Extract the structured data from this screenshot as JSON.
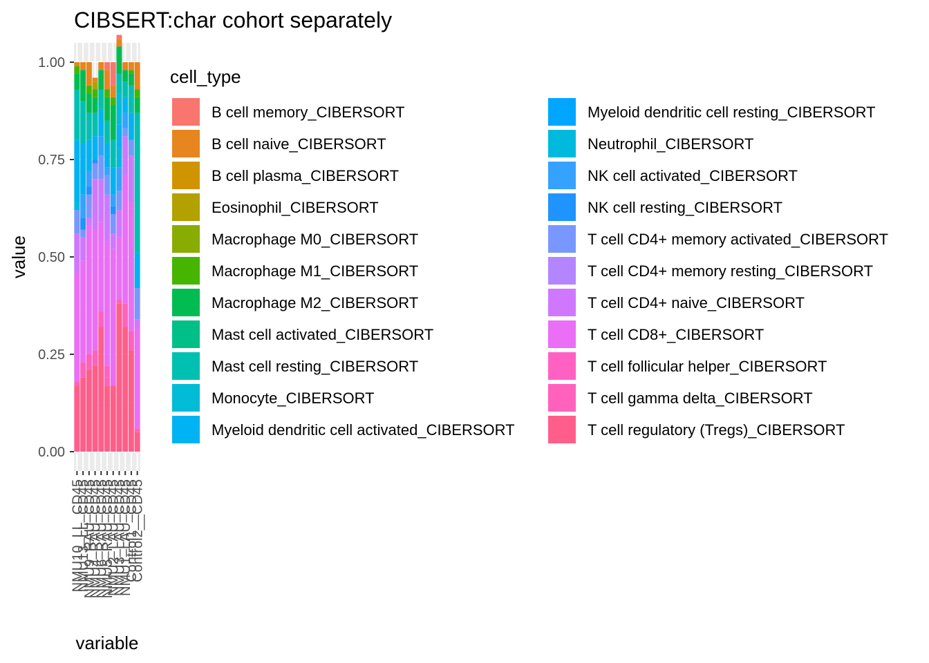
{
  "chart_data": {
    "type": "bar",
    "stacked": true,
    "title": "CIBSERT:char cohort separately",
    "xlabel": "variable",
    "ylabel": "value",
    "ylim": [
      0,
      1
    ],
    "yticks": [
      "0.00",
      "0.25",
      "0.50",
      "0.75",
      "1.00"
    ],
    "grid": true,
    "legend": {
      "title": "cell_type",
      "position": "right"
    },
    "categories": [
      "NMU10_LL_CD45",
      "NMU13_LL_CD45",
      "NMU9_RAU_CD45",
      "NMU4_RAU_CD45",
      "NMU6_RAU_CD45",
      "NMU5_RAU_CD45",
      "NMU2_LAU_CD45",
      "NMU3_LAU_CD45",
      "NMU1_LAU_CD45",
      "Control1__CD45",
      "Control2__CD45"
    ],
    "series": [
      {
        "name": "B cell memory_CIBERSORT",
        "color": "#F8766D",
        "values": [
          0,
          0,
          0,
          0,
          0,
          0.02,
          0.06,
          0.01,
          0,
          0,
          0
        ]
      },
      {
        "name": "B cell naive_CIBERSORT",
        "color": "#E7851E",
        "values": [
          0.01,
          0.02,
          0.06,
          0.01,
          0.02,
          0.05,
          0.03,
          0.02,
          0.02,
          0.02,
          0.07
        ]
      },
      {
        "name": "B cell plasma_CIBERSORT",
        "color": "#D09400",
        "values": [
          0,
          0,
          0,
          0,
          0,
          0,
          0,
          0,
          0,
          0,
          0
        ]
      },
      {
        "name": "Eosinophil_CIBERSORT",
        "color": "#B2A100",
        "values": [
          0,
          0,
          0,
          0.02,
          0,
          0,
          0,
          0,
          0,
          0,
          0
        ]
      },
      {
        "name": "Macrophage M0_CIBERSORT",
        "color": "#89AC00",
        "values": [
          0,
          0,
          0,
          0,
          0,
          0,
          0,
          0,
          0,
          0,
          0
        ]
      },
      {
        "name": "Macrophage M1_CIBERSORT",
        "color": "#45B500",
        "values": [
          0.02,
          0,
          0.02,
          0.02,
          0,
          0.02,
          0.02,
          0,
          0,
          0.01,
          0.02
        ]
      },
      {
        "name": "Macrophage M2_CIBERSORT",
        "color": "#00BC51",
        "values": [
          0.04,
          0.08,
          0.05,
          0.04,
          0.05,
          0.06,
          0.09,
          0.07,
          0.03,
          0.03,
          0.04
        ]
      },
      {
        "name": "Mast cell activated_CIBERSORT",
        "color": "#00C087",
        "values": [
          0,
          0,
          0,
          0,
          0,
          0,
          0,
          0,
          0,
          0,
          0
        ]
      },
      {
        "name": "Mast cell resting_CIBERSORT",
        "color": "#00C0B2",
        "values": [
          0.13,
          0.11,
          0.07,
          0.06,
          0.05,
          0.06,
          0.07,
          0.05,
          0.04,
          0.07,
          0.36
        ]
      },
      {
        "name": "Monocyte_CIBERSORT",
        "color": "#00BCD6",
        "values": [
          0,
          0,
          0,
          0,
          0,
          0,
          0,
          0.08,
          0,
          0,
          0
        ]
      },
      {
        "name": "Myeloid dendritic cell activated_CIBERSORT",
        "color": "#00B3F2",
        "values": [
          0.16,
          0.13,
          0.08,
          0.06,
          0.07,
          0.06,
          0.07,
          0.06,
          0.04,
          0.07,
          0.09
        ]
      },
      {
        "name": "Myeloid dendritic cell resting_CIBERSORT",
        "color": "#00A6FF",
        "values": [
          0,
          0,
          0,
          0,
          0,
          0,
          0,
          0,
          0,
          0,
          0
        ]
      },
      {
        "name": "Neutrophil_CIBERSORT",
        "color": "#00BADE",
        "values": [
          0.02,
          0,
          0,
          0,
          0,
          0,
          0,
          0.05,
          0,
          0,
          0
        ]
      },
      {
        "name": "NK cell activated_CIBERSORT",
        "color": "#35A2FF",
        "values": [
          0,
          0.06,
          0.04,
          0,
          0.05,
          0.02,
          0.03,
          0.06,
          0.04,
          0,
          0
        ]
      },
      {
        "name": "NK cell resting_CIBERSORT",
        "color": "#1F94FF",
        "values": [
          0,
          0.03,
          0.02,
          0.01,
          0,
          0,
          0.02,
          0,
          0,
          0,
          0
        ]
      },
      {
        "name": "T cell CD4+ memory activated_CIBERSORT",
        "color": "#7997FF",
        "values": [
          0.06,
          0.02,
          0.06,
          0.04,
          0.06,
          0.05,
          0.05,
          0.05,
          0.02,
          0.04,
          0.08
        ]
      },
      {
        "name": "T cell CD4+ memory resting_CIBERSORT",
        "color": "#B385FF",
        "values": [
          0,
          0,
          0,
          0,
          0,
          0,
          0,
          0,
          0,
          0,
          0
        ]
      },
      {
        "name": "T cell CD4+ naive_CIBERSORT",
        "color": "#CF78FF",
        "values": [
          0.1,
          0.06,
          0.02,
          0.13,
          0.11,
          0.12,
          0.04,
          0.07,
          0.1,
          0.12,
          0.02
        ]
      },
      {
        "name": "T cell CD8+_CIBERSORT",
        "color": "#EB6EF6",
        "values": [
          0.28,
          0.26,
          0.33,
          0.31,
          0.23,
          0.32,
          0.35,
          0.16,
          0.33,
          0.33,
          0.26
        ]
      },
      {
        "name": "T cell follicular helper_CIBERSORT",
        "color": "#FF61C3",
        "values": [
          0,
          0,
          0,
          0,
          0,
          0.03,
          0,
          0,
          0,
          0,
          0
        ]
      },
      {
        "name": "T cell gamma delta_CIBERSORT",
        "color": "#FF62BC",
        "values": [
          0.01,
          0.04,
          0.04,
          0.04,
          0.04,
          0.02,
          0,
          0.01,
          0.06,
          0.05,
          0.01
        ]
      },
      {
        "name": "T cell regulatory (Tregs)_CIBERSORT",
        "color": "#FF5E8A",
        "values": [
          0.17,
          0.19,
          0.21,
          0.22,
          0.32,
          0.17,
          0.17,
          0.38,
          0.32,
          0.26,
          0.05
        ]
      }
    ]
  }
}
